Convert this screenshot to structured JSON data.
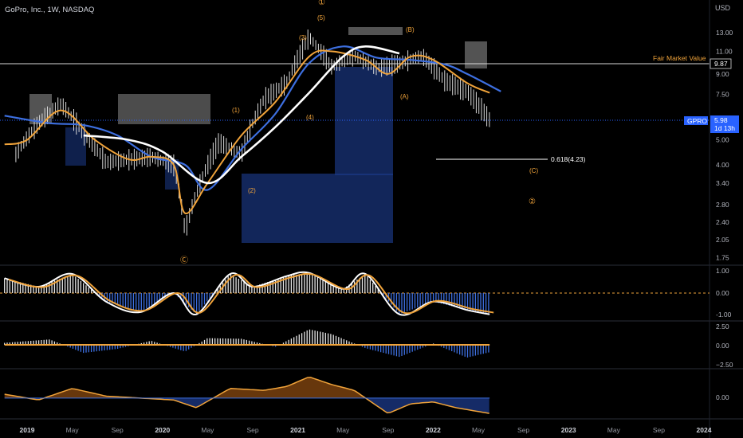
{
  "header": {
    "symbol_title": "GoPro, Inc., 1W, NASDAQ",
    "currency": "USD"
  },
  "price_axis": {
    "ticks": [
      "13.00",
      "11.00",
      "9.00",
      "7.50",
      "6.00",
      "5.00",
      "4.00",
      "3.40",
      "2.80",
      "2.40",
      "2.05",
      "1.75"
    ]
  },
  "fair_market": {
    "label": "Fair Market Value",
    "value": "9.87"
  },
  "last_price": {
    "ticker": "GPRO",
    "value": "5.98",
    "countdown": "1d 13h"
  },
  "fib": {
    "label": "0.618(4.23)"
  },
  "waves": {
    "w1": "(1)",
    "w2": "(2)",
    "w3": "(3)",
    "w4": "(4)",
    "w5": "(5)",
    "wA": "(A)",
    "wB": "(B)",
    "wC": "(C)",
    "circ1": "①",
    "circ2": "②",
    "circC": "Ⓒ"
  },
  "osc1_axis": [
    "1.00",
    "0.00",
    "-1.00"
  ],
  "osc2_axis": [
    "2.50",
    "0.00",
    "−2.50"
  ],
  "osc3_axis": [
    "0.00"
  ],
  "time_axis": [
    "2019",
    "May",
    "Sep",
    "2020",
    "May",
    "Sep",
    "2021",
    "May",
    "Sep",
    "2022",
    "May",
    "Sep",
    "2023",
    "May",
    "Sep",
    "2024"
  ],
  "colors": {
    "background": "#000000",
    "blue_ma": "#3d6fe0",
    "orange_ma": "#f0a33a",
    "white_ma": "#ffffff",
    "zone_blue": "#1c3a8a",
    "zone_gray": "#8a8a8a",
    "price_tag": "#2962ff"
  },
  "chart_data": {
    "type": "line",
    "title": "GoPro, Inc., 1W, NASDAQ",
    "y_scale": "log",
    "ylim": [
      1.6,
      15.5
    ],
    "x_range": [
      "2018-11",
      "2024-02"
    ],
    "series": [
      {
        "name": "",
        "style": "price-bars",
        "x": [
          "2018-12",
          "2019-02",
          "2019-04",
          "2019-06",
          "2019-08",
          "2019-10",
          "2019-12",
          "2020-02",
          "2020-03",
          "2020-04",
          "2020-06",
          "2020-08",
          "2020-10",
          "2020-12",
          "2021-02",
          "2021-04",
          "2021-06",
          "2021-08",
          "2021-10",
          "2021-12",
          "2022-02",
          "2022-04",
          "2022-06"
        ],
        "values": [
          4.4,
          5.8,
          6.9,
          5.3,
          4.1,
          4.2,
          4.3,
          4.0,
          2.2,
          3.1,
          4.9,
          4.4,
          7.2,
          8.3,
          12.5,
          9.6,
          10.6,
          9.5,
          9.9,
          10.6,
          8.5,
          7.7,
          5.98
        ]
      },
      {
        "name": "",
        "style": "blue-ma",
        "x": [
          "2018-11",
          "2019-03",
          "2019-06",
          "2019-09",
          "2019-12",
          "2020-03",
          "2020-05",
          "2020-08",
          "2020-11",
          "2021-02",
          "2021-05",
          "2021-08",
          "2021-11",
          "2022-02",
          "2022-04",
          "2022-07"
        ],
        "values": [
          6.2,
          5.8,
          5.7,
          5.2,
          4.3,
          4.0,
          3.2,
          4.6,
          6.3,
          9.9,
          11.5,
          10.4,
          10.2,
          9.8,
          9.0,
          7.7
        ]
      },
      {
        "name": "",
        "style": "orange-ma",
        "x": [
          "2018-11",
          "2019-01",
          "2019-04",
          "2019-07",
          "2019-10",
          "2019-12",
          "2020-02",
          "2020-03",
          "2020-05",
          "2020-08",
          "2020-11",
          "2021-02",
          "2021-04",
          "2021-07",
          "2021-09",
          "2021-11",
          "2022-01",
          "2022-04",
          "2022-06"
        ],
        "values": [
          4.8,
          5.0,
          6.5,
          5.0,
          4.2,
          4.3,
          4.0,
          2.6,
          3.4,
          5.2,
          7.0,
          10.5,
          11.0,
          10.2,
          9.0,
          10.5,
          10.2,
          8.3,
          7.6
        ]
      },
      {
        "name": "",
        "style": "white-ma",
        "x": [
          "2019-06",
          "2019-10",
          "2020-01",
          "2020-05",
          "2020-08",
          "2020-11",
          "2021-02",
          "2021-05",
          "2021-07",
          "2021-10"
        ],
        "values": [
          5.2,
          5.0,
          4.5,
          3.4,
          4.3,
          5.6,
          7.6,
          10.5,
          11.5,
          10.8
        ]
      }
    ],
    "annotations": {
      "fair_market_value": 9.87,
      "fib_0618": 4.23,
      "last_price": 5.98
    },
    "oscillators": [
      {
        "name": "",
        "ylim": [
          -1.2,
          1.2
        ],
        "x": [
          "2018-11",
          "2019-02",
          "2019-05",
          "2019-08",
          "2019-11",
          "2020-02",
          "2020-04",
          "2020-07",
          "2020-09",
          "2020-12",
          "2021-02",
          "2021-05",
          "2021-07",
          "2021-10",
          "2022-01",
          "2022-04",
          "2022-06"
        ],
        "values": [
          0.7,
          0.3,
          0.9,
          -0.4,
          -0.9,
          0.0,
          -1.0,
          0.9,
          0.3,
          0.8,
          0.95,
          0.2,
          0.9,
          -1.0,
          -0.4,
          -0.8,
          -1.0
        ]
      },
      {
        "name": "",
        "ylim": [
          -3.2,
          3.2
        ],
        "x": [
          "2018-11",
          "2019-03",
          "2019-06",
          "2019-09",
          "2019-12",
          "2020-03",
          "2020-05",
          "2020-08",
          "2020-11",
          "2021-02",
          "2021-04",
          "2021-07",
          "2021-10",
          "2022-01",
          "2022-04",
          "2022-06"
        ],
        "values": [
          0.3,
          0.8,
          -1.2,
          -0.6,
          0.6,
          -1.0,
          1.0,
          0.9,
          -0.3,
          2.3,
          1.6,
          -0.5,
          -1.8,
          0.2,
          -1.9,
          -1.1
        ]
      },
      {
        "name": "",
        "ylim": [
          -1.0,
          1.4
        ],
        "x": [
          "2018-11",
          "2019-02",
          "2019-05",
          "2019-08",
          "2019-11",
          "2020-02",
          "2020-04",
          "2020-07",
          "2020-10",
          "2020-12",
          "2021-02",
          "2021-04",
          "2021-06",
          "2021-09",
          "2021-11",
          "2022-01",
          "2022-03",
          "2022-06"
        ],
        "values": [
          0.2,
          -0.1,
          0.5,
          0.1,
          0.0,
          -0.1,
          -0.5,
          0.5,
          0.4,
          0.6,
          1.1,
          0.7,
          0.4,
          -0.8,
          -0.3,
          -0.2,
          -0.5,
          -0.8
        ]
      }
    ]
  }
}
